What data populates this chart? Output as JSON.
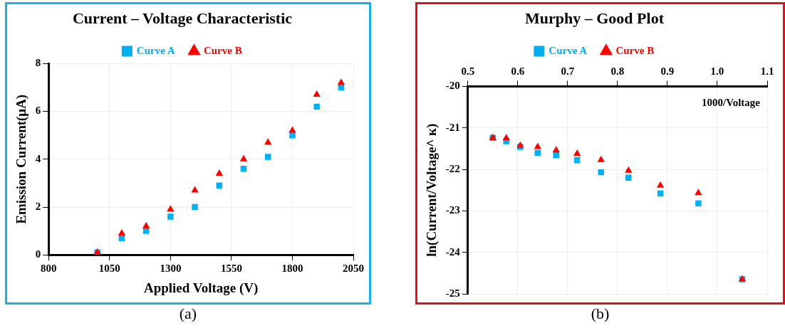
{
  "chart_data": [
    {
      "type": "scatter",
      "title": "Current – Voltage Characteristic",
      "xlabel": "Applied Voltage (V)",
      "ylabel": "Emission Current(μA)",
      "x": [
        1000,
        1100,
        1200,
        1300,
        1400,
        1500,
        1600,
        1700,
        1800,
        1900,
        2000
      ],
      "series": [
        {
          "name": "Curve A",
          "color": "#00b0f0",
          "marker": "square",
          "values": [
            0.1,
            0.7,
            1.0,
            1.6,
            2.0,
            2.9,
            3.6,
            4.1,
            5.0,
            6.2,
            7.0
          ]
        },
        {
          "name": "Curve B",
          "color": "#ff0000",
          "marker": "triangle",
          "values": [
            0.1,
            0.9,
            1.2,
            1.9,
            2.7,
            3.4,
            4.0,
            4.7,
            5.2,
            6.7,
            7.2
          ]
        }
      ],
      "xlim": [
        800,
        2050
      ],
      "xticks": [
        800,
        1050,
        1300,
        1550,
        1800,
        2050
      ],
      "ylim": [
        0,
        8
      ],
      "yticks": [
        0,
        2,
        4,
        6,
        8
      ],
      "grid": true,
      "legend": "top",
      "annotations": [
        "(a)"
      ]
    },
    {
      "type": "scatter",
      "title": "Murphy – Good Plot",
      "xlabel": "1000/Voltage",
      "ylabel": "ln(Current/Voltage^ к)",
      "x": [
        0.55,
        0.577,
        0.605,
        0.64,
        0.677,
        0.719,
        0.767,
        0.822,
        0.886,
        0.962,
        1.05
      ],
      "series": [
        {
          "name": "Curve A",
          "color": "#00b0f0",
          "marker": "square",
          "values": [
            -21.24,
            -21.32,
            -21.46,
            -21.6,
            -21.66,
            -21.78,
            -22.07,
            -22.2,
            -22.58,
            -22.82,
            -24.65
          ]
        },
        {
          "name": "Curve B",
          "color": "#ff0000",
          "marker": "triangle",
          "values": [
            -21.24,
            -21.25,
            -21.43,
            -21.46,
            -21.54,
            -21.62,
            -21.77,
            -22.03,
            -22.39,
            -22.57,
            -24.65
          ]
        }
      ],
      "xlim": [
        0.5,
        1.1
      ],
      "xticks": [
        0.5,
        0.6,
        0.7,
        0.8,
        0.9,
        {
          "value": 1.0,
          "label": "1.0"
        },
        1.1
      ],
      "ylim": [
        -25,
        -20
      ],
      "yticks": [
        -25,
        -24,
        -23,
        -22,
        -21,
        -20
      ],
      "grid": true,
      "legend": "top",
      "annotations": [
        "(b)"
      ]
    }
  ]
}
